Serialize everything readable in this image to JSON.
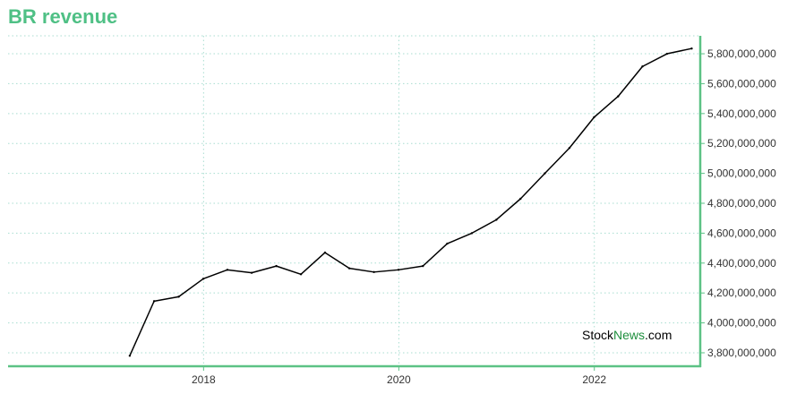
{
  "chart_data": {
    "type": "line",
    "title": "BR revenue",
    "xlabel": "",
    "ylabel": "",
    "x_tick_labels": [
      "2018",
      "2020",
      "2022"
    ],
    "y_ticks": [
      3800000000,
      4000000000,
      4200000000,
      4400000000,
      4600000000,
      4800000000,
      5000000000,
      5200000000,
      5400000000,
      5600000000,
      5800000000
    ],
    "y_tick_labels": [
      "3,800,000,000",
      "4,000,000,000",
      "4,200,000,000",
      "4,400,000,000",
      "4,600,000,000",
      "4,800,000,000",
      "5,000,000,000",
      "5,200,000,000",
      "5,400,000,000",
      "5,600,000,000",
      "5,800,000,000"
    ],
    "ylim": [
      3710000000,
      5920000000
    ],
    "y_axis_position": "right",
    "grid": true,
    "grid_style": "dotted",
    "series": [
      {
        "x": [
          "2017-03-31",
          "2017-06-30",
          "2017-09-30",
          "2017-12-31",
          "2018-03-31",
          "2018-06-30",
          "2018-09-30",
          "2018-12-31",
          "2019-03-31",
          "2019-06-30",
          "2019-09-30",
          "2019-12-31",
          "2020-03-31",
          "2020-06-30",
          "2020-09-30",
          "2020-12-31",
          "2021-03-31",
          "2021-06-30",
          "2021-09-30",
          "2021-12-31",
          "2022-03-31",
          "2022-06-30",
          "2022-09-30",
          "2022-12-31"
        ],
        "values": [
          3780000000,
          4145000000,
          4175000000,
          4295000000,
          4355000000,
          4335000000,
          4380000000,
          4325000000,
          4470000000,
          4365000000,
          4340000000,
          4355000000,
          4380000000,
          4530000000,
          4600000000,
          4690000000,
          4830000000,
          5000000000,
          5170000000,
          5375000000,
          5515000000,
          5715000000,
          5800000000,
          5835000000
        ]
      }
    ]
  },
  "watermark": {
    "part1": "Stock",
    "part2": "News",
    "part3": ".com"
  },
  "colors": {
    "title": "#4fc085",
    "axis": "#5cc285",
    "grid": "#a8ddd0",
    "line": "#000000",
    "watermark_dark": "#000000",
    "watermark_green": "#1f8f3e"
  }
}
